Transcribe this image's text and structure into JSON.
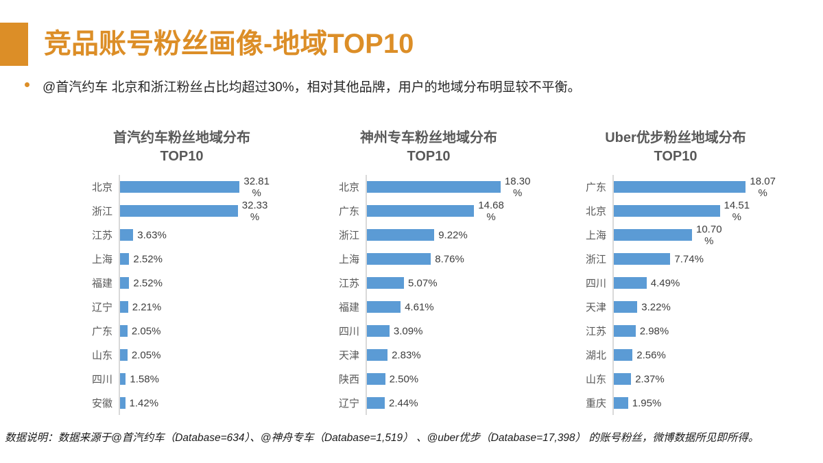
{
  "colors": {
    "accent_orange": "#DC8E27",
    "bar_blue": "#5B9BD5",
    "chart_title_gray": "#595959",
    "axis_gray": "#D9D9D9",
    "text_dark": "#262626"
  },
  "header": {
    "title": "竞品账号粉丝画像-地域TOP10"
  },
  "bullet": {
    "text": "@首汽约车 北京和浙江粉丝占比均超过30%，相对其他品牌，用户的地域分布明显较不平衡。"
  },
  "footer": {
    "text": "数据说明：数据来源于@首汽约车（Database=634）、@神舟专车（Database=1,519） 、@uber优步（Database=17,398） 的账号粉丝，微博数据所见即所得。"
  },
  "chart_data": [
    {
      "type": "bar",
      "orientation": "horizontal",
      "title": "首汽约车粉丝地域分布 TOP10",
      "title_lines": [
        "首汽约车粉丝地域分布",
        "TOP10"
      ],
      "categories": [
        "北京",
        "浙江",
        "江苏",
        "上海",
        "福建",
        "辽宁",
        "广东",
        "山东",
        "四川",
        "安徽"
      ],
      "values": [
        32.81,
        32.33,
        3.63,
        2.52,
        2.52,
        2.21,
        2.05,
        2.05,
        1.58,
        1.42
      ],
      "labels": [
        [
          "32.81",
          "%"
        ],
        [
          "32.33",
          "%"
        ],
        [
          "3.63%"
        ],
        [
          "2.52%"
        ],
        [
          "2.52%"
        ],
        [
          "2.21%"
        ],
        [
          "2.05%"
        ],
        [
          "2.05%"
        ],
        [
          "1.58%"
        ],
        [
          "1.42%"
        ]
      ],
      "xlim": [
        0,
        35
      ],
      "grid": false,
      "legend": false,
      "bar_color": "#5B9BD5"
    },
    {
      "type": "bar",
      "orientation": "horizontal",
      "title": "神州专车粉丝地域分布 TOP10",
      "title_lines": [
        "神州专车粉丝地域分布",
        "TOP10"
      ],
      "categories": [
        "北京",
        "广东",
        "浙江",
        "上海",
        "江苏",
        "福建",
        "四川",
        "天津",
        "陕西",
        "辽宁"
      ],
      "values": [
        18.3,
        14.68,
        9.22,
        8.76,
        5.07,
        4.61,
        3.09,
        2.83,
        2.5,
        2.44
      ],
      "labels": [
        [
          "18.30",
          "%"
        ],
        [
          "14.68",
          "%"
        ],
        [
          "9.22%"
        ],
        [
          "8.76%"
        ],
        [
          "5.07%"
        ],
        [
          "4.61%"
        ],
        [
          "3.09%"
        ],
        [
          "2.83%"
        ],
        [
          "2.50%"
        ],
        [
          "2.44%"
        ]
      ],
      "xlim": [
        0,
        20
      ],
      "grid": false,
      "legend": false,
      "bar_color": "#5B9BD5"
    },
    {
      "type": "bar",
      "orientation": "horizontal",
      "title": "Uber优步粉丝地域分布 TOP10",
      "title_lines": [
        "Uber优步粉丝地域分布",
        "TOP10"
      ],
      "categories": [
        "广东",
        "北京",
        "上海",
        "浙江",
        "四川",
        "天津",
        "江苏",
        "湖北",
        "山东",
        "重庆"
      ],
      "values": [
        18.07,
        14.51,
        10.7,
        7.74,
        4.49,
        3.22,
        2.98,
        2.56,
        2.37,
        1.95
      ],
      "labels": [
        [
          "18.07",
          "%"
        ],
        [
          "14.51",
          "%"
        ],
        [
          "10.70",
          "%"
        ],
        [
          "7.74%"
        ],
        [
          "4.49%"
        ],
        [
          "3.22%"
        ],
        [
          "2.98%"
        ],
        [
          "2.56%"
        ],
        [
          "2.37%"
        ],
        [
          "1.95%"
        ]
      ],
      "xlim": [
        0,
        20
      ],
      "grid": false,
      "legend": false,
      "bar_color": "#5B9BD5"
    }
  ]
}
